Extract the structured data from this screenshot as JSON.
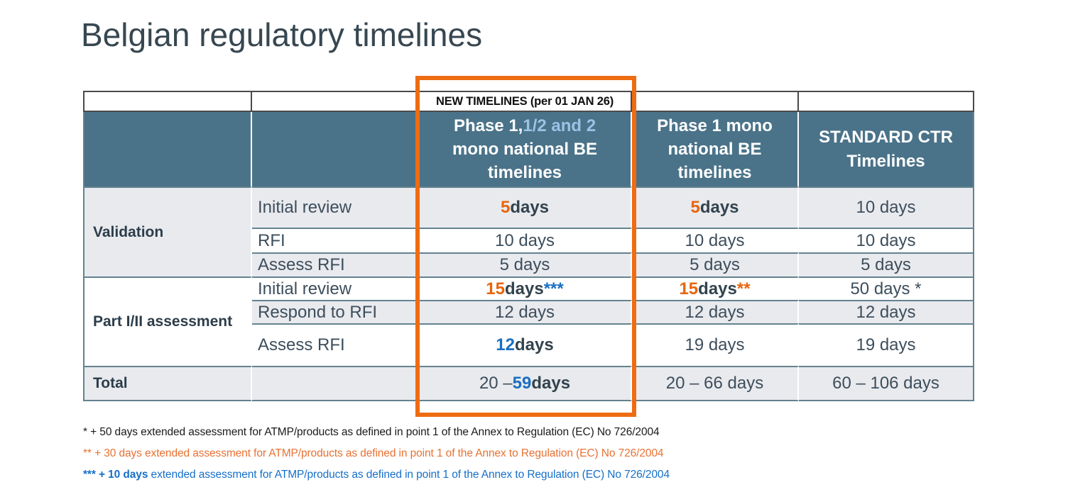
{
  "title": "Belgian regulatory timelines",
  "banner": {
    "text": "NEW TIMELINES (per 01 JAN 26)"
  },
  "columns": {
    "col3_line1a": "Phase 1,",
    "col3_line1b": "1/2 and 2",
    "col3_line2": "mono national BE timelines",
    "col4": "Phase 1 mono national BE timelines",
    "col5": "STANDARD CTR Timelines"
  },
  "groups": {
    "validation": "Validation",
    "part": "Part I/II assessment",
    "total": "Total"
  },
  "rows": {
    "r1": {
      "label": "Initial review",
      "c1": {
        "num": "5",
        "rest": " days"
      },
      "c2": {
        "num": "5",
        "rest": " days"
      },
      "c3": {
        "plain": "10 days"
      }
    },
    "r2": {
      "label": "RFI",
      "c1": {
        "plain": "10 days"
      },
      "c2": {
        "plain": "10 days"
      },
      "c3": {
        "plain": "10 days"
      }
    },
    "r3": {
      "label": "Assess RFI",
      "c1": {
        "plain": "5 days"
      },
      "c2": {
        "plain": "5 days"
      },
      "c3": {
        "plain": "5 days"
      }
    },
    "r4": {
      "label": "Initial review",
      "c1": {
        "num": "15",
        "rest": " days ",
        "star": "***"
      },
      "c2": {
        "num": "15",
        "rest": " days ",
        "star": "**"
      },
      "c3": {
        "plain": "50 days *"
      }
    },
    "r5": {
      "label": "Respond to RFI",
      "c1": {
        "plain": "12 days"
      },
      "c2": {
        "plain": "12 days"
      },
      "c3": {
        "plain": "12 days"
      }
    },
    "r6": {
      "label": "Assess RFI",
      "c1": {
        "num": "12",
        "rest": " days"
      },
      "c2": {
        "plain": "19 days"
      },
      "c3": {
        "plain": "19 days"
      }
    },
    "total": {
      "c1": {
        "pre": "20 – ",
        "num": "59",
        "rest": " days"
      },
      "c2": {
        "plain": "20 – 66 days"
      },
      "c3": {
        "plain": "60 – 106 days"
      }
    }
  },
  "footnotes": {
    "f1": "* + 50 days extended assessment for ATMP/products as defined in point 1 of the Annex to Regulation (EC) No 726/2004",
    "f2": "** + 30 days extended assessment for ATMP/products as defined in point 1 of the Annex to Regulation (EC) No 726/2004",
    "f3_bold": "*** + 10 days",
    "f3_rest": " extended assessment for ATMP/products as defined in point 1 of the Annex to Regulation (EC) No 726/2004"
  },
  "colors": {
    "header_bg": "#4A7389",
    "header_accent_text": "#9CC2E5",
    "alt_row_bg": "#E9EAEE",
    "body_text": "#3D4E5C",
    "accent_orange": "#E8650C",
    "accent_blue": "#1B6FC1",
    "highlight_box_orange": "#EE6C12",
    "footnote_orange": "#E97132",
    "footnote_blue": "#156FC9"
  }
}
